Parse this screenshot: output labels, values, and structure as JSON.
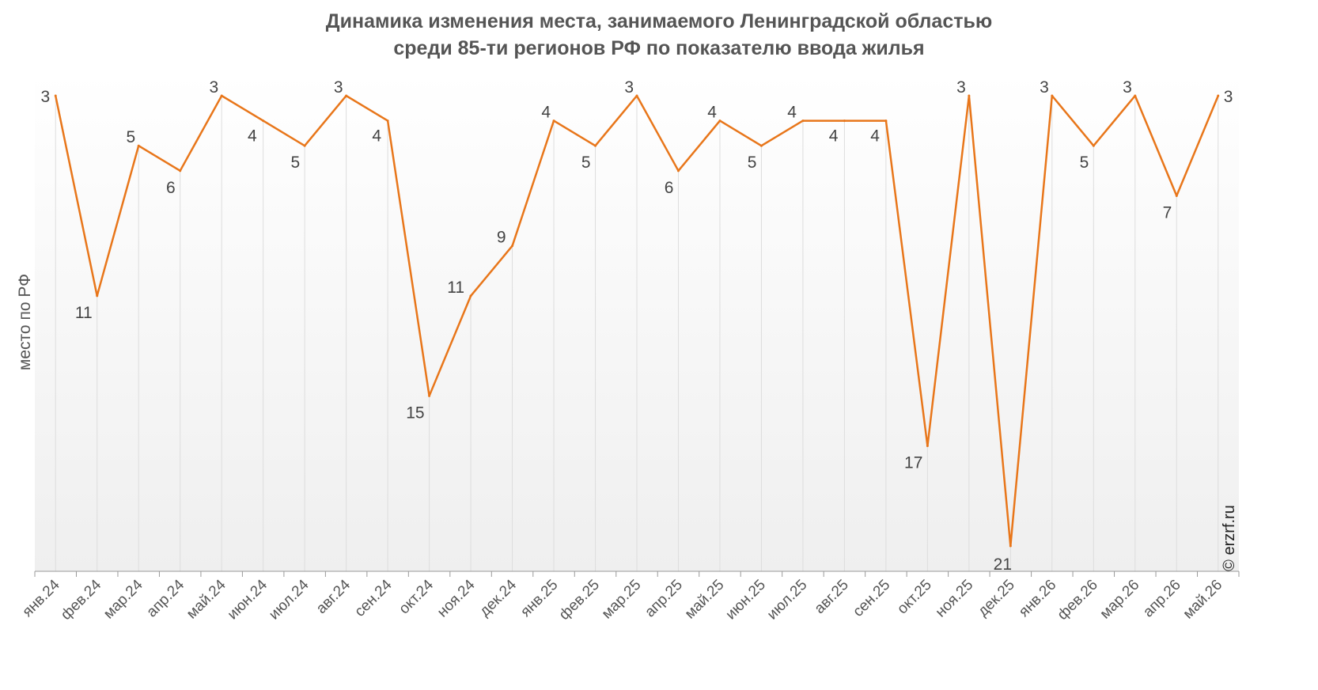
{
  "chart_data": {
    "type": "line",
    "title_line1": "Динамика изменения места, занимаемого Ленинградской областью",
    "title_line2": "среди 85-ти регионов РФ по показателю ввода жилья",
    "ylabel": "место по РФ",
    "xlabel": "",
    "y_reversed": true,
    "ylim": [
      3,
      21
    ],
    "grid": "vertical",
    "categories": [
      "янв.24",
      "фев.24",
      "мар.24",
      "апр.24",
      "май.24",
      "июн.24",
      "июл.24",
      "авг.24",
      "сен.24",
      "окт.24",
      "ноя.24",
      "дек.24",
      "янв.25",
      "фев.25",
      "мар.25",
      "апр.25",
      "май.25",
      "июн.25",
      "июл.25",
      "авг.25",
      "сен.25",
      "окт.25",
      "ноя.25",
      "дек.25",
      "янв.26",
      "фев.26",
      "мар.26",
      "апр.26",
      "май.26"
    ],
    "series": [
      {
        "values": [
          3,
          11,
          5,
          6,
          3,
          4,
          5,
          3,
          4,
          15,
          11,
          9,
          4,
          5,
          3,
          6,
          4,
          5,
          4,
          4,
          4,
          17,
          3,
          21,
          3,
          5,
          3,
          7,
          3
        ],
        "color": "#e8761a"
      }
    ]
  },
  "credit": "© erzrf.ru",
  "colors": {
    "line": "#e8761a",
    "text": "#555555",
    "grid": "#dddddd",
    "background_top": "#ffffff",
    "background_bottom": "#efefef"
  }
}
